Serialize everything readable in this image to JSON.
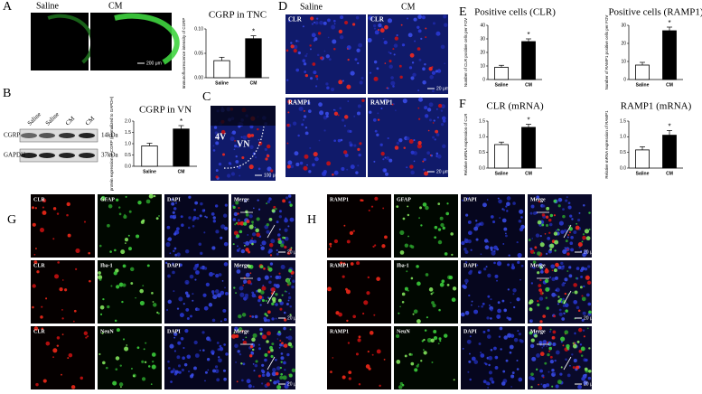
{
  "panels": {
    "letters": [
      "A",
      "B",
      "C",
      "D",
      "E",
      "F",
      "G",
      "H"
    ],
    "a_images": [
      "Saline",
      "CM"
    ],
    "a_scale": "200 μm",
    "b_lanes": [
      "Saline",
      "Saline",
      "CM",
      "CM"
    ],
    "b_bands": [
      {
        "name": "CGRP",
        "size": "14kDa"
      },
      {
        "name": "GAPDH",
        "size": "37kDa"
      }
    ],
    "c_labels": [
      "4V",
      "VN"
    ],
    "c_scale": "100 μm",
    "d_columns": [
      "Saline",
      "CM"
    ],
    "d_rows": [
      "CLR",
      "RAMP1"
    ],
    "d_scale": "20 μm",
    "g_rows": [
      [
        "CLR",
        "GFAP",
        "DAPI",
        "Merge"
      ],
      [
        "CLR",
        "Iba-1",
        "DAPI",
        "Merge"
      ],
      [
        "CLR",
        "NeuN",
        "DAPI",
        "Merge"
      ]
    ],
    "h_rows": [
      [
        "RAMP1",
        "GFAP",
        "DAPI",
        "Merge"
      ],
      [
        "RAMP1",
        "Iba-1",
        "DAPI",
        "Merge"
      ],
      [
        "RAMP1",
        "NeuN",
        "DAPI",
        "Merge"
      ]
    ],
    "gh_scale": "20 μm"
  },
  "chart_data": [
    {
      "type": "bar",
      "title": "CGRP in TNC",
      "y_label": "Immunofluorescence intensity of CGRP",
      "categories": [
        "Saline",
        "CM"
      ],
      "values": [
        0.035,
        0.08
      ],
      "errors": [
        0.007,
        0.006
      ],
      "colors": [
        "#ffffff",
        "#000000"
      ],
      "ylim": [
        0,
        0.1
      ],
      "yticks": [
        {
          "value": 0,
          "label": "0.00"
        },
        {
          "value": 0.05,
          "label": "0.05"
        },
        {
          "value": 0.1,
          "label": "0.10"
        }
      ],
      "annotation": "*"
    },
    {
      "type": "bar",
      "title": "CGRP in VN",
      "y_label": "protein expression of CGRP (normalized to GAPDH)",
      "categories": [
        "Saline",
        "CM"
      ],
      "values": [
        0.9,
        1.65
      ],
      "errors": [
        0.12,
        0.15
      ],
      "colors": [
        "#ffffff",
        "#000000"
      ],
      "ylim": [
        0,
        2
      ],
      "yticks": [
        {
          "value": 0,
          "label": "0.0"
        },
        {
          "value": 0.5,
          "label": "0.5"
        },
        {
          "value": 1,
          "label": "1.0"
        },
        {
          "value": 1.5,
          "label": "1.5"
        },
        {
          "value": 2,
          "label": "2.0"
        }
      ],
      "annotation": "*"
    },
    {
      "type": "bar",
      "title": "Positive cells (CLR)",
      "y_label": "Number of CLR positive cells per FOV",
      "categories": [
        "Saline",
        "CM"
      ],
      "values": [
        9,
        28
      ],
      "errors": [
        1.5,
        2
      ],
      "colors": [
        "#ffffff",
        "#000000"
      ],
      "ylim": [
        0,
        40
      ],
      "yticks": [
        0,
        10,
        20,
        30,
        40
      ],
      "annotation": "*"
    },
    {
      "type": "bar",
      "title": "Positive cells (RAMP1)",
      "y_label": "Number of RAMP1 positive cells per FOV",
      "categories": [
        "Saline",
        "CM"
      ],
      "values": [
        8,
        27
      ],
      "errors": [
        1.5,
        2
      ],
      "colors": [
        "#ffffff",
        "#000000"
      ],
      "ylim": [
        0,
        30
      ],
      "yticks": [
        0,
        10,
        20,
        30
      ],
      "annotation": "*"
    },
    {
      "type": "bar",
      "title": "CLR (mRNA)",
      "y_label": "Relative mRNA expression of CLR",
      "categories": [
        "Saline",
        "CM"
      ],
      "values": [
        0.75,
        1.3
      ],
      "errors": [
        0.08,
        0.1
      ],
      "colors": [
        "#ffffff",
        "#000000"
      ],
      "ylim": [
        0,
        1.5
      ],
      "yticks": [
        {
          "value": 0,
          "label": "0.0"
        },
        {
          "value": 0.5,
          "label": "0.5"
        },
        {
          "value": 1,
          "label": "1.0"
        },
        {
          "value": 1.5,
          "label": "1.5"
        }
      ],
      "annotation": "*"
    },
    {
      "type": "bar",
      "title": "RAMP1 (mRNA)",
      "y_label": "Relative mRNA expression of RAMP1",
      "categories": [
        "Saline",
        "CM"
      ],
      "values": [
        0.58,
        1.05
      ],
      "errors": [
        0.1,
        0.15
      ],
      "colors": [
        "#ffffff",
        "#000000"
      ],
      "ylim": [
        0,
        1.5
      ],
      "yticks": [
        {
          "value": 0,
          "label": "0.0"
        },
        {
          "value": 0.5,
          "label": "0.5"
        },
        {
          "value": 1,
          "label": "1.0"
        },
        {
          "value": 1.5,
          "label": "1.5"
        }
      ],
      "annotation": "*"
    }
  ]
}
